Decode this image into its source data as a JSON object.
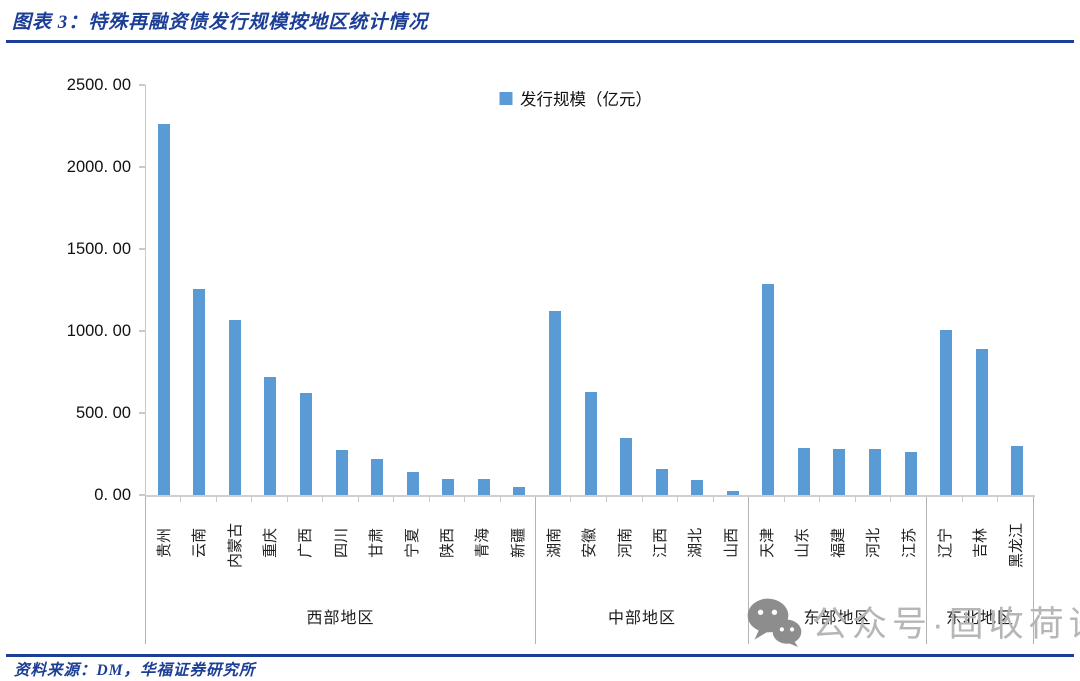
{
  "header": {
    "title": "图表 3：特殊再融资债发行规模按地区统计情况"
  },
  "legend": {
    "label": "发行规模（亿元）"
  },
  "chart_data": {
    "type": "bar",
    "title": "特殊再融资债发行规模按地区统计情况",
    "series_name": "发行规模（亿元）",
    "unit": "亿元",
    "ylim": [
      0,
      2500
    ],
    "ytick_step": 500,
    "ytick_labels": [
      "2500. 00",
      "2000. 00",
      "1500. 00",
      "1000. 00",
      "500. 00",
      "0. 00"
    ],
    "grid": false,
    "legend_position": "top-center",
    "groups": [
      {
        "region": "西部地区",
        "categories": [
          "贵州",
          "云南",
          "内蒙古",
          "重庆",
          "广西",
          "四川",
          "甘肃",
          "宁夏",
          "陕西",
          "青海",
          "新疆"
        ],
        "values": [
          2264,
          1256,
          1067,
          722,
          623,
          276,
          220,
          139,
          100,
          96,
          48
        ]
      },
      {
        "region": "中部地区",
        "categories": [
          "湖南",
          "安徽",
          "河南",
          "江西",
          "湖北",
          "山西"
        ],
        "values": [
          1122,
          626,
          349,
          156,
          92,
          25
        ]
      },
      {
        "region": "东部地区",
        "categories": [
          "天津",
          "山东",
          "福建",
          "河北",
          "江苏"
        ],
        "values": [
          1286,
          284,
          283,
          279,
          260
        ]
      },
      {
        "region": "东北地区",
        "categories": [
          "辽宁",
          "吉林",
          "黑龙江"
        ],
        "values": [
          1006,
          892,
          300
        ]
      }
    ]
  },
  "footer": {
    "source": "资料来源：DM，华福证券研究所"
  },
  "watermark": {
    "icon": "wechat-icon",
    "text": "公众号·固收荷语"
  },
  "colors": {
    "bar": "#5B9BD5",
    "navy": "#1B3F96",
    "axis": "#C9C9C9",
    "separator": "#B3B3B3",
    "watermark_icon": "#8D8D8D",
    "watermark_text": "#B6B6B6"
  }
}
